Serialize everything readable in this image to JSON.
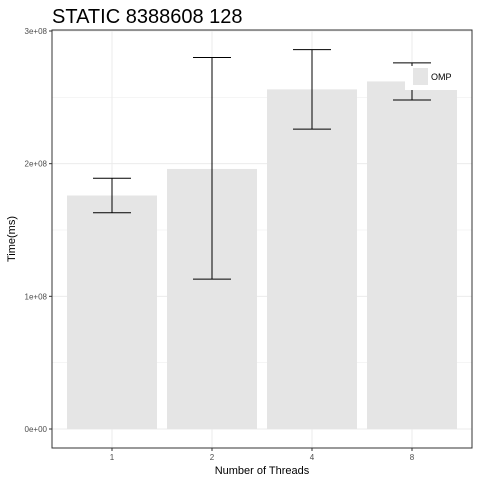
{
  "chart_data": {
    "type": "bar",
    "title": "STATIC 8388608 128",
    "xlabel": "Number of Threads",
    "ylabel": "Time(ms)",
    "categories": [
      "1",
      "2",
      "4",
      "8"
    ],
    "series": [
      {
        "name": "OMP",
        "values": [
          176000000,
          196000000,
          256000000,
          262000000
        ],
        "error_low": [
          163000000,
          113000000,
          226000000,
          248000000
        ],
        "error_high": [
          189000000,
          280000000,
          286000000,
          276000000
        ]
      }
    ],
    "ylim": [
      0,
      300000000
    ],
    "y_ticks": [
      0,
      100000000,
      200000000,
      300000000
    ],
    "y_tick_labels": [
      "0e+00",
      "1e+08",
      "2e+08",
      "3e+08"
    ],
    "grid": true,
    "legend_position": "top-right",
    "colors": {
      "bar_fill": "#e5e5e5",
      "grid": "#ebebeb",
      "panel_border": "#333333",
      "error_bar": "#000000",
      "tick_label": "#4d4d4d"
    }
  }
}
